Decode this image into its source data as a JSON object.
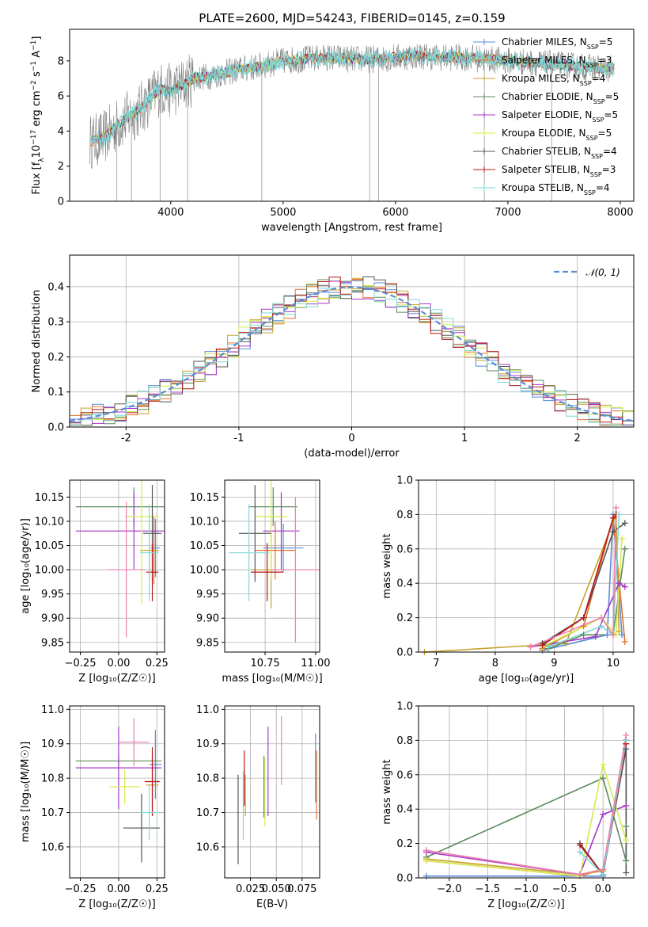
{
  "figure": {
    "title": "PLATE=2600, MJD=54243, FIBERID=0145, z=0.159"
  },
  "colors": {
    "Chabrier MILES": "#5b8bd8",
    "Salpeter MILES": "#e8712c",
    "Kroupa MILES": "#c8a22c",
    "Chabrier ELODIE": "#5e8a5e",
    "Salpeter ELODIE": "#a637c8",
    "Kroupa ELODIE": "#d3ec4c",
    "Chabrier STELIB": "#555555",
    "Salpeter STELIB": "#b81818",
    "Kroupa STELIB": "#7fd8d8",
    "Gaussian": "#5b8bd8",
    "data": "#808080",
    "pink": "#ee7fb0"
  },
  "chart_data": [
    {
      "id": "spectrum",
      "type": "line",
      "xlabel": "wavelength [Angstrom, rest frame]",
      "ylabel": "Flux [f_λ10^-17 erg cm^-2 s^-1 A^-1]",
      "xlim": [
        3100,
        8120
      ],
      "ylim": [
        0,
        9.8
      ],
      "xticks": [
        4000,
        5000,
        6000,
        7000,
        8000
      ],
      "yticks": [
        0,
        2,
        4,
        6,
        8
      ],
      "legend_position": "right",
      "legend": [
        {
          "name": "Chabrier MILES",
          "nssp": "5"
        },
        {
          "name": "Salpeter MILES",
          "nssp": "3"
        },
        {
          "name": "Kroupa MILES",
          "nssp": "4"
        },
        {
          "name": "Chabrier ELODIE",
          "nssp": "5"
        },
        {
          "name": "Salpeter ELODIE",
          "nssp": "5"
        },
        {
          "name": "Kroupa ELODIE",
          "nssp": "5"
        },
        {
          "name": "Chabrier STELIB",
          "nssp": "4"
        },
        {
          "name": "Salpeter STELIB",
          "nssp": "3"
        },
        {
          "name": "Kroupa STELIB",
          "nssp": "4"
        }
      ],
      "continuum": {
        "x": [
          3280,
          3400,
          3500,
          3600,
          3700,
          3800,
          3900,
          4000,
          4100,
          4200,
          4400,
          4600,
          4800,
          5000,
          5200,
          5400,
          5600,
          5800,
          6000,
          6200,
          6400,
          6600,
          6800,
          7000,
          7200,
          7400,
          7600,
          7800,
          7950
        ],
        "y": [
          3.4,
          3.6,
          4.2,
          4.7,
          5.1,
          5.7,
          6.4,
          6.3,
          6.6,
          7.0,
          7.2,
          7.5,
          7.7,
          8.0,
          8.1,
          8.2,
          8.1,
          8.1,
          8.2,
          8.3,
          8.2,
          8.2,
          8.1,
          8.0,
          7.9,
          7.8,
          7.7,
          7.6,
          7.5
        ]
      }
    },
    {
      "id": "residuals",
      "type": "line",
      "xlabel": "(data-model)/error",
      "ylabel": "Normed distribution",
      "xlim": [
        -2.5,
        2.5
      ],
      "ylim": [
        0,
        0.49
      ],
      "xticks": [
        -2,
        -1,
        0,
        1,
        2
      ],
      "yticks": [
        0.0,
        0.1,
        0.2,
        0.3,
        0.4
      ],
      "grid": true,
      "legend_position": "top-right",
      "gaussian_label": "𝒩(0, 1)",
      "bin_width": 0.1
    },
    {
      "id": "age_vs_Z",
      "type": "scatter",
      "xlabel": "Z [log₁₀(Z/Z☉)]",
      "ylabel": "age  [log₁₀(age/yr)]",
      "xlim": [
        -0.32,
        0.3
      ],
      "ylim": [
        9.83,
        10.185
      ],
      "xticks": [
        -0.25,
        0.0,
        0.25
      ],
      "xtick_labels": [
        "−0.25",
        "0.00",
        "0.25"
      ],
      "yticks": [
        9.85,
        9.9,
        9.95,
        10.0,
        10.05,
        10.1,
        10.15
      ],
      "grid": true,
      "points": [
        {
          "name": "Chabrier MILES",
          "x": 0.24,
          "xerr": 0.03,
          "y": 10.045,
          "yerr": 0.06
        },
        {
          "name": "Salpeter MILES",
          "x": 0.23,
          "xerr": 0.03,
          "y": 10.04,
          "yerr": 0.07
        },
        {
          "name": "Kroupa MILES",
          "x": 0.2,
          "xerr": 0.06,
          "y": 10.04,
          "yerr": 0.06
        },
        {
          "name": "Chabrier ELODIE",
          "x": 0.1,
          "xerr": 0.38,
          "y": 10.13,
          "yerr": 0.04
        },
        {
          "name": "Salpeter ELODIE",
          "x": 0.1,
          "xerr": 0.38,
          "y": 10.08,
          "yerr": 0.08
        },
        {
          "name": "Kroupa ELODIE",
          "x": 0.15,
          "xerr": 0.11,
          "y": 10.11,
          "yerr": 0.18
        },
        {
          "name": "Chabrier STELIB",
          "x": 0.22,
          "xerr": 0.06,
          "y": 10.075,
          "yerr": 0.1
        },
        {
          "name": "Salpeter STELIB",
          "x": 0.22,
          "xerr": 0.04,
          "y": 9.995,
          "yerr": 0.06
        },
        {
          "name": "Kroupa STELIB",
          "x": 0.2,
          "xerr": 0.06,
          "y": 10.035,
          "yerr": 0.1
        },
        {
          "name": "extra",
          "color": "pink",
          "x": 0.05,
          "xerr": 0.12,
          "y": 10.0,
          "yerr": 0.14
        }
      ]
    },
    {
      "id": "age_vs_mass",
      "type": "scatter",
      "xlabel": "mass [log₁₀(M/M☉)]",
      "ylabel": "",
      "xlim": [
        10.55,
        11.02
      ],
      "ylim": [
        9.83,
        10.185
      ],
      "xticks": [
        10.75,
        11.0
      ],
      "xtick_labels": [
        "10.75",
        "11.00"
      ],
      "yticks": [
        9.85,
        9.9,
        9.95,
        10.0,
        10.05,
        10.1,
        10.15
      ],
      "grid": true,
      "points": [
        {
          "name": "Chabrier MILES",
          "x": 10.84,
          "xerr": 0.1,
          "y": 10.045,
          "yerr": 0.05
        },
        {
          "name": "Salpeter MILES",
          "x": 10.8,
          "xerr": 0.1,
          "y": 10.04,
          "yerr": 0.06
        },
        {
          "name": "Kroupa MILES",
          "x": 10.78,
          "xerr": 0.1,
          "y": 10.0,
          "yerr": 0.08
        },
        {
          "name": "Chabrier ELODIE",
          "x": 10.79,
          "xerr": 0.12,
          "y": 10.13,
          "yerr": 0.04
        },
        {
          "name": "Salpeter ELODIE",
          "x": 10.83,
          "xerr": 0.09,
          "y": 10.08,
          "yerr": 0.08
        },
        {
          "name": "Kroupa ELODIE",
          "x": 10.78,
          "xerr": 0.08,
          "y": 10.11,
          "yerr": 0.13
        },
        {
          "name": "Chabrier STELIB",
          "x": 10.7,
          "xerr": 0.08,
          "y": 10.075,
          "yerr": 0.1
        },
        {
          "name": "Salpeter STELIB",
          "x": 10.76,
          "xerr": 0.08,
          "y": 9.995,
          "yerr": 0.06
        },
        {
          "name": "Kroupa STELIB",
          "x": 10.67,
          "xerr": 0.1,
          "y": 10.035,
          "yerr": 0.1
        },
        {
          "name": "extra",
          "color": "pink",
          "x": 10.9,
          "xerr": 0.12,
          "y": 10.0,
          "yerr": 0.15
        }
      ]
    },
    {
      "id": "weight_vs_age",
      "type": "line",
      "xlabel": "age  [log₁₀(age/yr)]",
      "ylabel": "mass weight",
      "xlim": [
        6.7,
        10.35
      ],
      "ylim": [
        0,
        1.0
      ],
      "xticks": [
        7,
        8,
        9,
        10
      ],
      "yticks": [
        0.0,
        0.2,
        0.4,
        0.6,
        0.8,
        1.0
      ],
      "grid": true,
      "series": [
        {
          "name": "Chabrier MILES",
          "x": [
            8.8,
            9.9,
            10.0,
            10.15
          ],
          "y": [
            0.01,
            0.1,
            0.8,
            0.1
          ]
        },
        {
          "name": "Salpeter MILES",
          "x": [
            8.8,
            9.5,
            10.0,
            10.2
          ],
          "y": [
            0.02,
            0.15,
            0.78,
            0.06
          ]
        },
        {
          "name": "Kroupa MILES",
          "x": [
            6.8,
            9.2,
            10.05,
            10.1
          ],
          "y": [
            0.0,
            0.05,
            0.8,
            0.12
          ]
        },
        {
          "name": "Chabrier ELODIE",
          "x": [
            8.9,
            9.5,
            10.0,
            10.2
          ],
          "y": [
            0.02,
            0.1,
            0.1,
            0.6
          ]
        },
        {
          "name": "Salpeter ELODIE",
          "x": [
            8.6,
            9.7,
            10.1,
            10.2
          ],
          "y": [
            0.03,
            0.09,
            0.4,
            0.38
          ]
        },
        {
          "name": "Kroupa ELODIE",
          "x": [
            8.8,
            9.8,
            10.05,
            10.15
          ],
          "y": [
            0.03,
            0.2,
            0.1,
            0.66
          ]
        },
        {
          "name": "Chabrier STELIB",
          "x": [
            8.8,
            9.5,
            10.0,
            10.2
          ],
          "y": [
            0.05,
            0.2,
            0.7,
            0.75
          ]
        },
        {
          "name": "Salpeter STELIB",
          "x": [
            8.8,
            9.5,
            10.0,
            10.05
          ],
          "y": [
            0.04,
            0.2,
            0.78,
            0.8
          ]
        },
        {
          "name": "Kroupa STELIB",
          "x": [
            8.9,
            9.8,
            10.0,
            10.1
          ],
          "y": [
            0.03,
            0.15,
            0.1,
            0.8
          ]
        },
        {
          "name": "extra",
          "color": "pink",
          "x": [
            8.6,
            9.8,
            10.0,
            10.05
          ],
          "y": [
            0.03,
            0.2,
            0.1,
            0.84
          ]
        }
      ]
    },
    {
      "id": "mass_vs_Z",
      "type": "scatter",
      "xlabel": "Z [log₁₀(Z/Z☉)]",
      "ylabel": "mass [log₁₀(M/M☉)]",
      "xlim": [
        -0.32,
        0.3
      ],
      "ylim": [
        10.51,
        11.01
      ],
      "xticks": [
        -0.25,
        0.0,
        0.25
      ],
      "xtick_labels": [
        "−0.25",
        "0.00",
        "0.25"
      ],
      "yticks": [
        10.6,
        10.7,
        10.8,
        10.9,
        11.0
      ],
      "grid": true,
      "points": [
        {
          "name": "Chabrier MILES",
          "x": 0.24,
          "xerr": 0.04,
          "y": 10.84,
          "yerr": 0.1
        },
        {
          "name": "Salpeter MILES",
          "x": 0.22,
          "xerr": 0.04,
          "y": 10.79,
          "yerr": 0.08
        },
        {
          "name": "Kroupa MILES",
          "x": 0.22,
          "xerr": 0.04,
          "y": 10.78,
          "yerr": 0.09
        },
        {
          "name": "Chabrier ELODIE",
          "x": 0.0,
          "xerr": 0.28,
          "y": 10.85,
          "yerr": 0.02
        },
        {
          "name": "Salpeter ELODIE",
          "x": 0.0,
          "xerr": 0.28,
          "y": 10.83,
          "yerr": 0.12
        },
        {
          "name": "Kroupa ELODIE",
          "x": 0.04,
          "xerr": 0.1,
          "y": 10.775,
          "yerr": 0.05
        },
        {
          "name": "Chabrier STELIB",
          "x": 0.15,
          "xerr": 0.12,
          "y": 10.655,
          "yerr": 0.1
        },
        {
          "name": "Salpeter STELIB",
          "x": 0.22,
          "xerr": 0.05,
          "y": 10.79,
          "yerr": 0.1
        },
        {
          "name": "Kroupa STELIB",
          "x": 0.2,
          "xerr": 0.06,
          "y": 10.7,
          "yerr": 0.08
        },
        {
          "name": "extra",
          "color": "pink",
          "x": 0.1,
          "xerr": 0.1,
          "y": 10.905,
          "yerr": 0.07
        }
      ]
    },
    {
      "id": "mass_vs_EBV",
      "type": "scatter",
      "xlabel": "E(B-V)",
      "ylabel": "",
      "xlim": [
        0.0,
        0.092
      ],
      "ylim": [
        10.51,
        11.01
      ],
      "xticks": [
        0.025,
        0.05,
        0.075
      ],
      "xtick_labels": [
        "0.025",
        "0.050",
        "0.075"
      ],
      "yticks": [
        10.6,
        10.7,
        10.8,
        10.9,
        11.0
      ],
      "grid": true,
      "points": [
        {
          "name": "Chabrier MILES",
          "x": 0.088,
          "xerr": 0,
          "y": 10.83,
          "yerr": 0.1
        },
        {
          "name": "Salpeter MILES",
          "x": 0.089,
          "xerr": 0,
          "y": 10.78,
          "yerr": 0.1
        },
        {
          "name": "Kroupa MILES",
          "x": 0.02,
          "xerr": 0,
          "y": 10.75,
          "yerr": 0.06
        },
        {
          "name": "Chabrier ELODIE",
          "x": 0.038,
          "xerr": 0,
          "y": 10.775,
          "yerr": 0.09
        },
        {
          "name": "Salpeter ELODIE",
          "x": 0.042,
          "xerr": 0,
          "y": 10.82,
          "yerr": 0.13
        },
        {
          "name": "Kroupa ELODIE",
          "x": 0.039,
          "xerr": 0,
          "y": 10.76,
          "yerr": 0.1
        },
        {
          "name": "Chabrier STELIB",
          "x": 0.013,
          "xerr": 0,
          "y": 10.68,
          "yerr": 0.13
        },
        {
          "name": "Salpeter STELIB",
          "x": 0.019,
          "xerr": 0,
          "y": 10.8,
          "yerr": 0.08
        },
        {
          "name": "Kroupa STELIB",
          "x": 0.018,
          "xerr": 0,
          "y": 10.72,
          "yerr": 0.1
        },
        {
          "name": "extra",
          "color": "pink",
          "x": 0.055,
          "xerr": 0,
          "y": 10.88,
          "yerr": 0.1
        }
      ]
    },
    {
      "id": "weight_vs_Z",
      "type": "line",
      "xlabel": "Z [log₁₀(Z/Z☉)]",
      "ylabel": "mass weight",
      "xlim": [
        -2.4,
        0.4
      ],
      "ylim": [
        0,
        1.0
      ],
      "xticks": [
        -2.0,
        -1.5,
        -1.0,
        -0.5,
        0.0
      ],
      "xtick_labels": [
        "−2.0",
        "−1.5",
        "−1.0",
        "−0.5",
        "0.0"
      ],
      "yticks": [
        0.0,
        0.2,
        0.4,
        0.6,
        0.8,
        1.0
      ],
      "grid": true,
      "series": [
        {
          "name": "Chabrier MILES",
          "x": [
            -2.3,
            0.0,
            0.3,
            0.3
          ],
          "y": [
            0.01,
            0.01,
            0.8,
            0.1
          ]
        },
        {
          "name": "Salpeter MILES",
          "x": [
            -2.3,
            -0.3,
            0.0,
            0.3
          ],
          "y": [
            0.1,
            0.01,
            0.05,
            0.78
          ]
        },
        {
          "name": "Kroupa MILES",
          "x": [
            -2.3,
            -0.3,
            0.0,
            0.3
          ],
          "y": [
            0.11,
            0.02,
            0.04,
            0.8
          ]
        },
        {
          "name": "Chabrier ELODIE",
          "x": [
            -2.3,
            0.0,
            0.3,
            0.3
          ],
          "y": [
            0.12,
            0.58,
            0.1,
            0.3
          ]
        },
        {
          "name": "Salpeter ELODIE",
          "x": [
            -2.3,
            -0.3,
            0.0,
            0.3
          ],
          "y": [
            0.15,
            0.02,
            0.37,
            0.42
          ]
        },
        {
          "name": "Kroupa ELODIE",
          "x": [
            -2.3,
            -0.3,
            0.0,
            0.3
          ],
          "y": [
            0.1,
            0.01,
            0.66,
            0.22
          ]
        },
        {
          "name": "Chabrier STELIB",
          "x": [
            -0.3,
            0.0,
            0.3,
            0.3
          ],
          "y": [
            0.2,
            0.02,
            0.75,
            0.03
          ]
        },
        {
          "name": "Salpeter STELIB",
          "x": [
            -0.3,
            0.0,
            0.3,
            0.3
          ],
          "y": [
            0.19,
            0.02,
            0.78,
            0.8
          ]
        },
        {
          "name": "Kroupa STELIB",
          "x": [
            -0.3,
            0.0,
            0.3
          ],
          "y": [
            0.15,
            0.02,
            0.8
          ]
        },
        {
          "name": "extra",
          "color": "pink",
          "x": [
            -2.3,
            -0.3,
            0.0,
            0.3
          ],
          "y": [
            0.16,
            0.02,
            0.05,
            0.83
          ]
        }
      ]
    }
  ]
}
